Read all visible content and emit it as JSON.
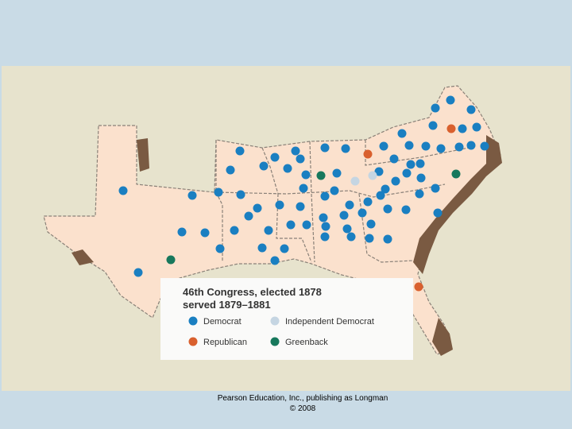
{
  "legend": {
    "title": [
      "46th Congress, elected 1878",
      "served 1879–1881"
    ],
    "items": [
      {
        "label": "Democrat",
        "color": "#1a7fc1"
      },
      {
        "label": "Independent Democrat",
        "color": "#c5d5e2"
      },
      {
        "label": "Republican",
        "color": "#d9602e"
      },
      {
        "label": "Greenback",
        "color": "#17785c"
      }
    ]
  },
  "footer": [
    "Pearson Education, Inc., publishing as Longman",
    "© 2008"
  ]
}
